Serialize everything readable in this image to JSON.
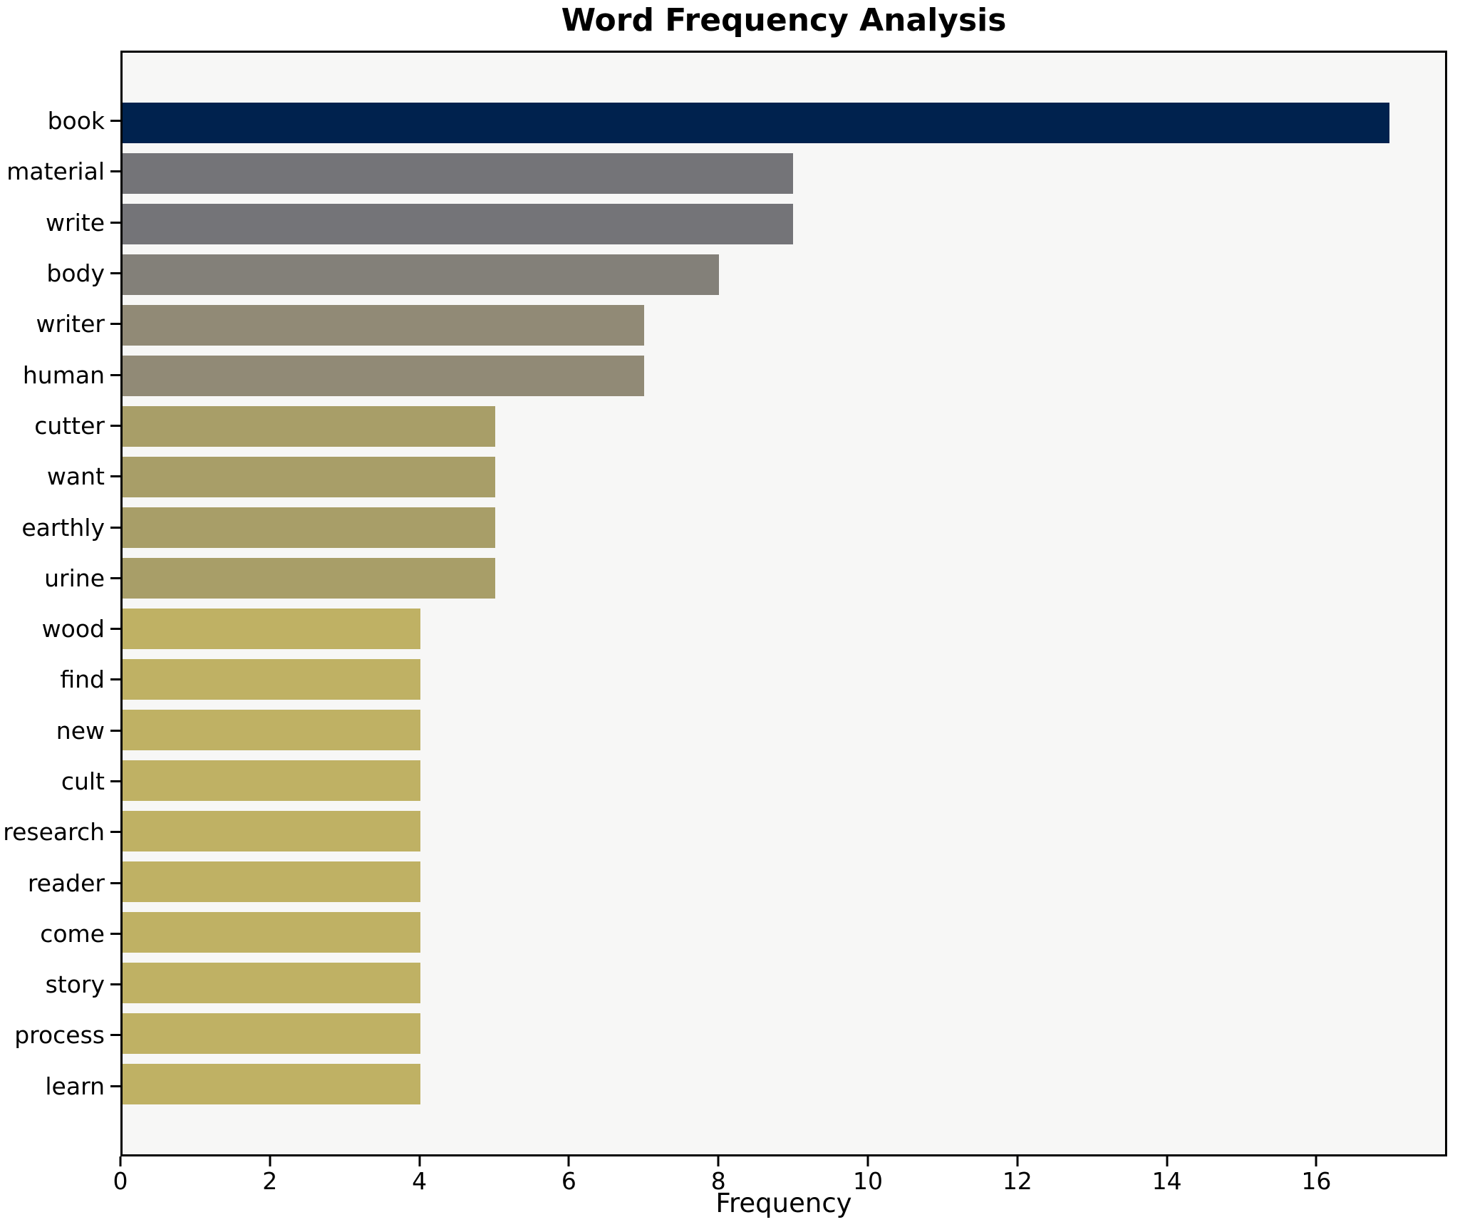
{
  "chart_data": {
    "type": "bar",
    "orientation": "horizontal",
    "title": "Word Frequency Analysis",
    "xlabel": "Frequency",
    "ylabel": "",
    "categories": [
      "book",
      "material",
      "write",
      "body",
      "writer",
      "human",
      "cutter",
      "want",
      "earthly",
      "urine",
      "wood",
      "find",
      "new",
      "cult",
      "research",
      "reader",
      "come",
      "story",
      "process",
      "learn"
    ],
    "values": [
      17,
      9,
      9,
      8,
      7,
      7,
      5,
      5,
      5,
      5,
      4,
      4,
      4,
      4,
      4,
      4,
      4,
      4,
      4,
      4
    ],
    "bar_colors": [
      "#00224e",
      "#747478",
      "#747478",
      "#838079",
      "#918a76",
      "#918a76",
      "#a89e68",
      "#a89e68",
      "#a89e68",
      "#a89e68",
      "#bfb164",
      "#bfb164",
      "#bfb164",
      "#bfb164",
      "#bfb164",
      "#bfb164",
      "#bfb164",
      "#bfb164",
      "#bfb164",
      "#bfb164"
    ],
    "xticks": [
      0,
      2,
      4,
      6,
      8,
      10,
      12,
      14,
      16
    ],
    "xlim": [
      0,
      17.75
    ],
    "grid": "off",
    "legend": "none",
    "plot_background": "#f7f7f6",
    "figure_background": "#ffffff",
    "spine_color": "#000000"
  }
}
